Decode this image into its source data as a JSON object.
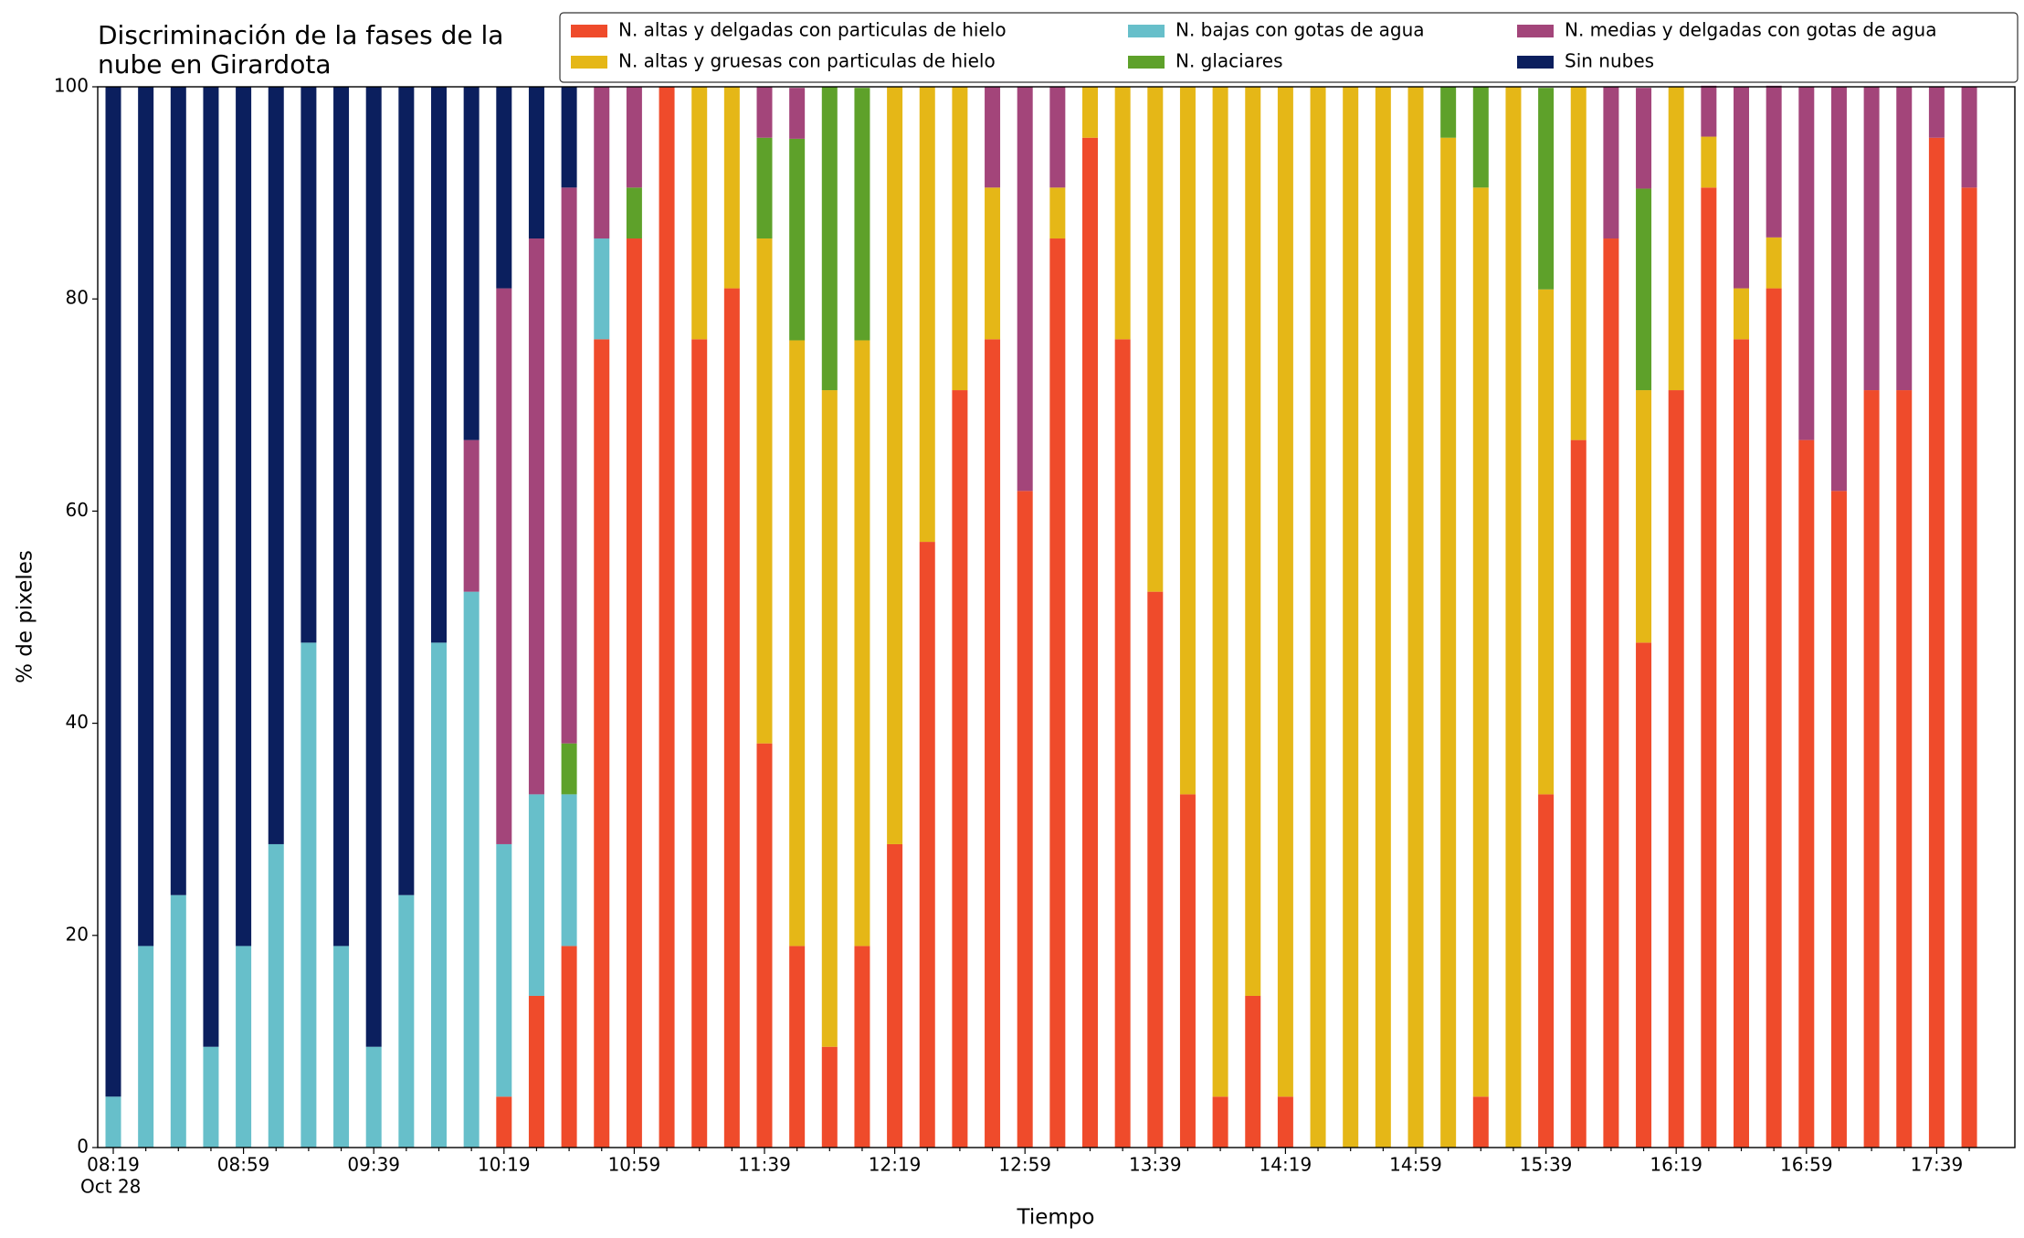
{
  "chart_data": {
    "type": "stacked_bar",
    "title": [
      "Discriminación de la fases de la",
      "nube en Girardota"
    ],
    "xlabel": "Tiempo",
    "ylabel": "% de pixeles",
    "x_sublabel": "Oct 28",
    "categories": [
      "08:19",
      null,
      null,
      null,
      "08:59",
      null,
      null,
      null,
      "09:39",
      null,
      null,
      null,
      "10:19",
      null,
      null,
      null,
      "10:59",
      null,
      null,
      null,
      "11:39",
      null,
      null,
      null,
      "12:19",
      null,
      null,
      null,
      "12:59",
      null,
      null,
      null,
      "13:39",
      null,
      null,
      null,
      "14:19",
      null,
      null,
      null,
      "14:59",
      null,
      null,
      null,
      "15:39",
      null,
      null,
      null,
      "16:19",
      null,
      null,
      null,
      "16:59",
      null,
      null,
      null,
      "17:39",
      null
    ],
    "ylim": [
      0,
      100
    ],
    "yticks": [
      0,
      20,
      40,
      60,
      80,
      100
    ],
    "grid": false,
    "legend": "top",
    "series": [
      {
        "name": "N. altas y delgadas con particulas de hielo",
        "color": "#ef4b2b",
        "values": [
          0,
          0,
          0,
          0,
          0,
          0,
          0,
          0,
          0,
          0,
          0,
          0,
          4.8,
          14.3,
          19.0,
          76.2,
          85.7,
          100,
          76.2,
          81.0,
          38.1,
          19.0,
          9.5,
          19.0,
          28.6,
          57.1,
          71.4,
          76.2,
          61.9,
          85.7,
          95.2,
          76.2,
          52.4,
          33.3,
          4.8,
          14.3,
          4.8,
          0,
          0,
          0,
          0,
          0,
          4.8,
          0,
          33.3,
          66.7,
          85.7,
          47.6,
          71.4,
          90.5,
          76.2,
          81.0,
          66.7,
          61.9,
          71.4,
          71.4,
          95.2,
          90.5
        ]
      },
      {
        "name": "N. altas y gruesas con particulas de hielo",
        "color": "#e5b717",
        "values": [
          0,
          0,
          0,
          0,
          0,
          0,
          0,
          0,
          0,
          0,
          0,
          0,
          0,
          0,
          0,
          0,
          0,
          0,
          23.8,
          19.0,
          47.6,
          57.1,
          61.9,
          57.1,
          71.4,
          42.9,
          28.6,
          14.3,
          0,
          4.8,
          4.8,
          23.8,
          47.6,
          66.7,
          95.2,
          85.7,
          95.2,
          100,
          100,
          100,
          100,
          95.2,
          85.7,
          100,
          47.6,
          33.3,
          0,
          23.8,
          28.6,
          4.8,
          4.8,
          4.8,
          0,
          0,
          0,
          0,
          0,
          0
        ]
      },
      {
        "name": "N. bajas con gotas de agua",
        "color": "#67bfca",
        "values": [
          4.8,
          19.0,
          23.8,
          9.5,
          19.0,
          28.6,
          47.6,
          19.0,
          9.5,
          23.8,
          47.6,
          52.4,
          23.8,
          19.0,
          14.3,
          9.5,
          0,
          0,
          0,
          0,
          0,
          0,
          0,
          0,
          0,
          0,
          0,
          0,
          0,
          0,
          0,
          0,
          0,
          0,
          0,
          0,
          0,
          0,
          0,
          0,
          0,
          0,
          0,
          0,
          0,
          0,
          0,
          0,
          0,
          0,
          0,
          0,
          0,
          0,
          0,
          0,
          0,
          0
        ]
      },
      {
        "name": "N. glaciares",
        "color": "#5ea12a",
        "values": [
          0,
          0,
          0,
          0,
          0,
          0,
          0,
          0,
          0,
          0,
          0,
          0,
          0,
          0,
          4.8,
          0,
          4.8,
          0,
          0,
          0,
          9.5,
          19.0,
          28.6,
          23.8,
          0,
          0,
          0,
          0,
          0,
          0,
          0,
          0,
          0,
          0,
          0,
          0,
          0,
          0,
          0,
          0,
          0,
          4.8,
          9.5,
          0,
          19.0,
          0,
          0,
          19.0,
          0,
          0,
          0,
          0,
          0,
          0,
          0,
          0,
          0,
          0
        ]
      },
      {
        "name": "N. medias y delgadas con gotas de agua",
        "color": "#a3457a",
        "values": [
          0,
          0,
          0,
          0,
          0,
          0,
          0,
          0,
          0,
          0,
          0,
          14.3,
          52.4,
          52.4,
          52.4,
          14.3,
          9.5,
          0,
          0,
          0,
          4.8,
          4.8,
          0,
          0,
          0,
          0,
          0,
          9.5,
          38.1,
          9.5,
          0,
          0,
          0,
          0,
          0,
          0,
          0,
          0,
          0,
          0,
          0,
          0,
          0,
          0,
          0,
          0,
          14.3,
          9.5,
          0,
          4.8,
          19.0,
          14.3,
          33.3,
          38.1,
          28.6,
          28.6,
          4.8,
          9.5
        ]
      },
      {
        "name": "Sin nubes",
        "color": "#0b1f5e",
        "values": [
          95.2,
          81.0,
          76.2,
          90.5,
          81.0,
          71.4,
          52.4,
          81.0,
          90.5,
          76.2,
          52.4,
          33.3,
          19.0,
          14.3,
          9.5,
          0,
          0,
          0,
          0,
          0,
          0,
          0,
          0,
          0,
          0,
          0,
          0,
          0,
          0,
          0,
          0,
          0,
          0,
          0,
          0,
          0,
          0,
          0,
          0,
          0,
          0,
          0,
          0,
          0,
          0,
          0,
          0,
          0,
          0,
          0,
          0,
          0,
          0,
          0,
          0,
          0,
          0,
          0
        ]
      }
    ]
  }
}
